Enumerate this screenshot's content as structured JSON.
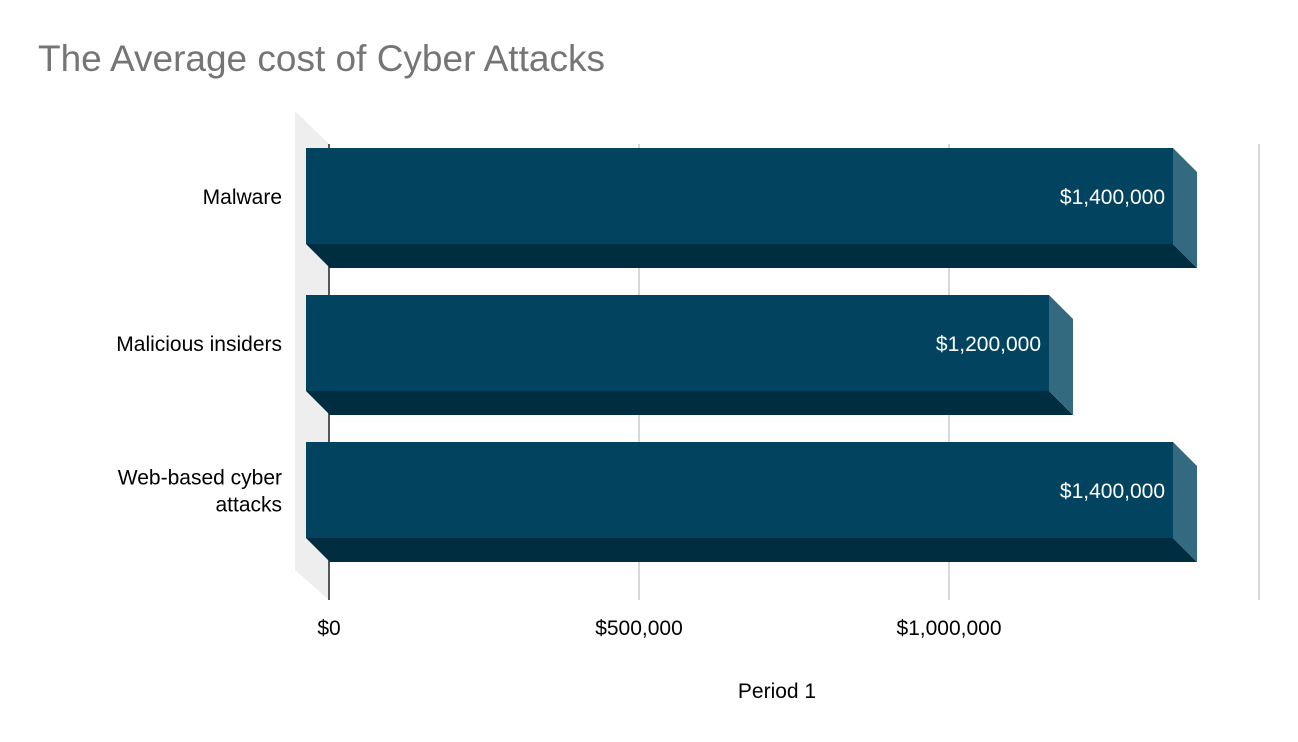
{
  "chart_data": {
    "type": "bar",
    "orientation": "horizontal",
    "style": "3d",
    "title": "The Average cost of Cyber Attacks",
    "xlabel": "Period 1",
    "ylabel": "",
    "categories": [
      [
        "Malware"
      ],
      [
        "Malicious insiders"
      ],
      [
        "Web-based cyber",
        "attacks"
      ]
    ],
    "values": [
      1400000,
      1200000,
      1400000
    ],
    "value_labels": [
      "$1,400,000",
      "$1,200,000",
      "$1,400,000"
    ],
    "x_ticks": [
      0,
      500000,
      1000000
    ],
    "x_tick_labels": [
      "$0",
      "$500,000",
      "$1,000,000"
    ],
    "xlim": [
      0,
      1500000
    ],
    "grid": true,
    "legend": "none",
    "colors": {
      "bar_front": "#02445f",
      "bar_bottom": "#012d40",
      "bar_end": "#346a80",
      "back_wall": "#eeeeee",
      "gridline": "#cccccc",
      "title": "#757575"
    }
  }
}
